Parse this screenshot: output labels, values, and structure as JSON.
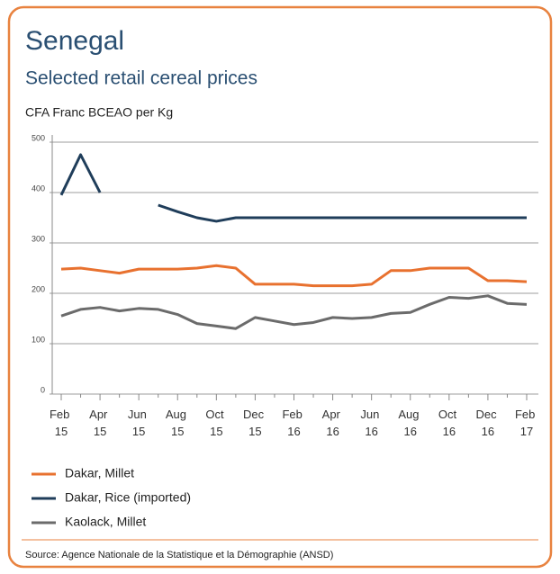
{
  "chart_data": {
    "type": "line",
    "title": "Senegal",
    "subtitle": "Selected retail cereal prices",
    "y_label": "CFA Franc BCEAO per Kg",
    "source": "Source: Agence Nationale de la Statistique et la Démographie (ANSD)",
    "categories": [
      "Feb 15",
      null,
      "Apr 15",
      null,
      "Jun 15",
      null,
      "Aug 15",
      null,
      "Oct 15",
      null,
      "Dec 15",
      null,
      "Feb 16",
      null,
      "Apr 16",
      null,
      "Jun 16",
      null,
      "Aug 16",
      null,
      "Oct 16",
      null,
      "Dec 16",
      null,
      "Feb 17"
    ],
    "series": [
      {
        "name": "Dakar, Millet",
        "color": "#e8712f",
        "values": [
          248,
          250,
          245,
          240,
          248,
          248,
          248,
          250,
          255,
          250,
          218,
          218,
          218,
          215,
          215,
          215,
          218,
          245,
          245,
          250,
          250,
          250,
          225,
          225,
          223
        ]
      },
      {
        "name": "Dakar, Rice (imported)",
        "color": "#1f3d5a",
        "values": [
          395,
          475,
          400,
          null,
          null,
          375,
          362,
          350,
          343,
          350,
          350,
          350,
          350,
          350,
          350,
          350,
          350,
          350,
          350,
          350,
          350,
          350,
          350,
          350,
          350
        ]
      },
      {
        "name": "Kaolack, Millet",
        "color": "#6b6b6b",
        "values": [
          155,
          168,
          172,
          165,
          170,
          168,
          158,
          140,
          135,
          130,
          152,
          145,
          138,
          142,
          152,
          150,
          152,
          160,
          162,
          178,
          192,
          190,
          195,
          180,
          178
        ]
      }
    ],
    "ylim": [
      0,
      500
    ],
    "yticks": [
      0,
      100,
      200,
      300,
      400,
      500
    ],
    "grid": true
  }
}
